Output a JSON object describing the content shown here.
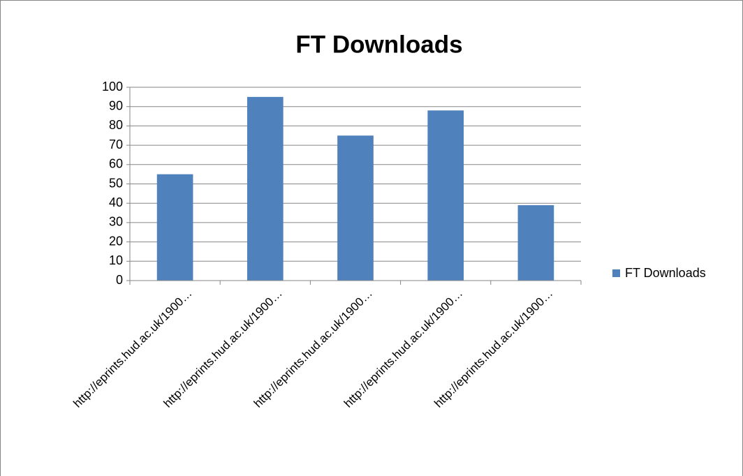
{
  "chart_data": {
    "type": "bar",
    "title": "FT Downloads",
    "categories": [
      "http://eprints.hud.ac.uk/1900…",
      "http://eprints.hud.ac.uk/1900…",
      "http://eprints.hud.ac.uk/1900…",
      "http://eprints.hud.ac.uk/1900…",
      "http://eprints.hud.ac.uk/1900…"
    ],
    "series": [
      {
        "name": "FT Downloads",
        "color": "#4f81bd",
        "values": [
          55,
          95,
          75,
          88,
          39
        ]
      }
    ],
    "ylim": [
      0,
      100
    ],
    "yticks": [
      0,
      10,
      20,
      30,
      40,
      50,
      60,
      70,
      80,
      90,
      100
    ],
    "grid": true,
    "legend": "right"
  }
}
